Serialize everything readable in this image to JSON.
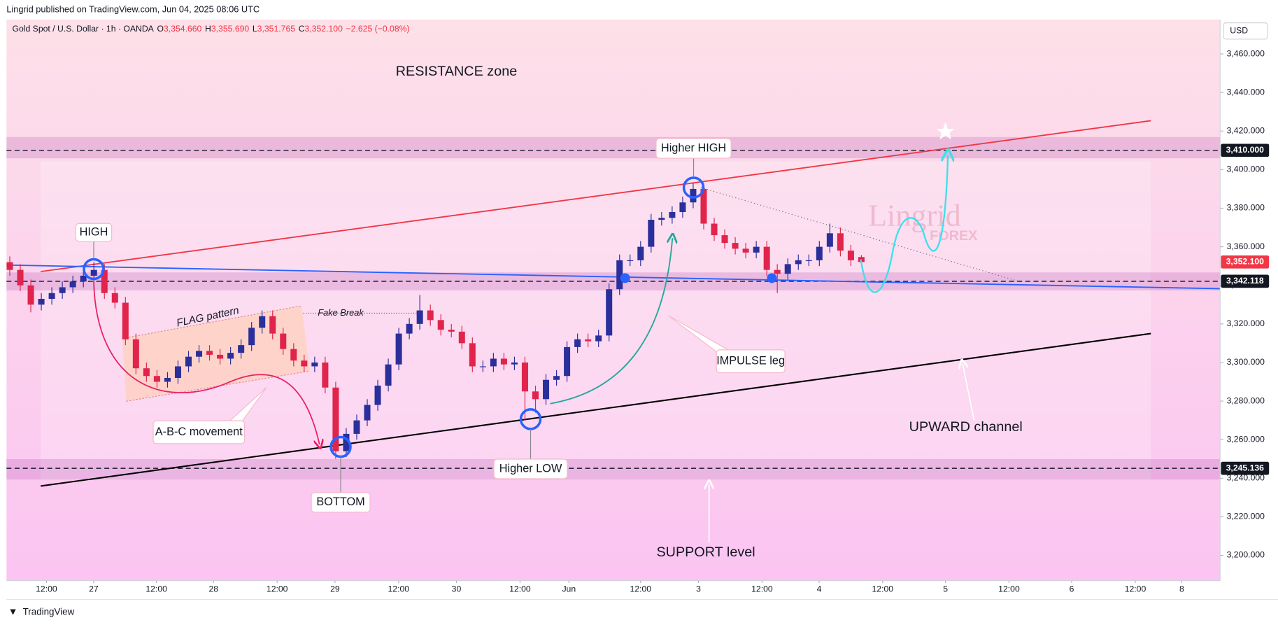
{
  "header": {
    "published": "Lingrid published on TradingView.com, Jun 04, 2025 08:06 UTC"
  },
  "symbol": {
    "title": "Gold Spot / U.S. Dollar · 1h · OANDA",
    "ohlc_labels": [
      "O",
      "H",
      "L",
      "C"
    ],
    "ohlc_values": [
      "3,354.660",
      "3,355.690",
      "3,351.765",
      "3,352.100"
    ],
    "change": "−2.625 (−0.08%)"
  },
  "axis": {
    "currency": "USD"
  },
  "annotations": {
    "resistance": "RESISTANCE zone",
    "higher_high": "Higher HIGH",
    "high": "HIGH",
    "flag": "FLAG pattern",
    "fake_break": "Fake Break",
    "abc": "A-B-C movement",
    "bottom": "BOTTOM",
    "higher_low": "Higher LOW",
    "impulse": "IMPULSE leg",
    "channel": "UPWARD channel",
    "support": "SUPPORT level"
  },
  "watermark": {
    "name": "Lingrid",
    "sub": "FOREX"
  },
  "footer": {
    "brand": "TradingView"
  },
  "chart_data": {
    "type": "candlestick",
    "up_color": "#2b2f9c",
    "down_color": "#e0244b",
    "open": [
      3352,
      3348,
      3340,
      3330,
      3333,
      3336,
      3339,
      3342,
      3345,
      3348,
      3336,
      3331,
      3312,
      3297,
      3293,
      3290,
      3292,
      3298,
      3303,
      3306,
      3304,
      3302,
      3305,
      3309,
      3318,
      3324,
      3315,
      3307,
      3301,
      3298,
      3300,
      3287,
      3254,
      3263,
      3270,
      3278,
      3288,
      3299,
      3315,
      3320,
      3327,
      3322,
      3317,
      3316,
      3310,
      3298,
      3298,
      3302,
      3299,
      3300,
      3285,
      3281,
      3291,
      3293,
      3308,
      3312,
      3311,
      3314,
      3338,
      3353,
      3353,
      3360,
      3374,
      3375,
      3378,
      3383,
      3390,
      3372,
      3366,
      3362,
      3359,
      3357,
      3360,
      3348,
      3346,
      3351,
      3353,
      3353,
      3360,
      3367,
      3358,
      3354.66
    ],
    "high": [
      3355,
      3351,
      3343,
      3336,
      3339,
      3342,
      3345,
      3348,
      3352,
      3351,
      3339,
      3334,
      3315,
      3300,
      3296,
      3295,
      3301,
      3306,
      3309,
      3309,
      3307,
      3308,
      3312,
      3321,
      3327,
      3327,
      3318,
      3310,
      3304,
      3303,
      3303,
      3290,
      3266,
      3273,
      3281,
      3291,
      3302,
      3318,
      3323,
      3335,
      3330,
      3325,
      3320,
      3319,
      3313,
      3301,
      3305,
      3305,
      3303,
      3303,
      3288,
      3294,
      3296,
      3311,
      3315,
      3315,
      3317,
      3341,
      3356,
      3356,
      3363,
      3377,
      3378,
      3381,
      3386,
      3393,
      3393,
      3375,
      3369,
      3365,
      3362,
      3363,
      3363,
      3351,
      3354,
      3356,
      3356,
      3363,
      3372,
      3370,
      3361,
      3355.69
    ],
    "low": [
      3345,
      3337,
      3326,
      3327,
      3330,
      3333,
      3336,
      3339,
      3342,
      3333,
      3328,
      3309,
      3294,
      3290,
      3287,
      3287,
      3289,
      3295,
      3300,
      3301,
      3299,
      3299,
      3302,
      3306,
      3315,
      3312,
      3304,
      3298,
      3295,
      3295,
      3284,
      3250,
      3251,
      3260,
      3267,
      3275,
      3285,
      3296,
      3312,
      3317,
      3319,
      3314,
      3313,
      3307,
      3295,
      3295,
      3295,
      3296,
      3296,
      3270,
      3274,
      3278,
      3288,
      3290,
      3305,
      3308,
      3308,
      3311,
      3335,
      3350,
      3350,
      3357,
      3371,
      3372,
      3375,
      3380,
      3369,
      3363,
      3359,
      3356,
      3354,
      3354,
      3345,
      3336,
      3343,
      3348,
      3350,
      3350,
      3357,
      3355,
      3350,
      3351.765
    ],
    "close": [
      3348,
      3340,
      3330,
      3333,
      3336,
      3339,
      3342,
      3345,
      3348,
      3336,
      3331,
      3312,
      3297,
      3293,
      3290,
      3292,
      3298,
      3303,
      3306,
      3304,
      3302,
      3305,
      3309,
      3318,
      3324,
      3315,
      3307,
      3301,
      3298,
      3300,
      3287,
      3254,
      3263,
      3270,
      3278,
      3288,
      3299,
      3315,
      3320,
      3327,
      3322,
      3317,
      3316,
      3310,
      3298,
      3298,
      3302,
      3299,
      3300,
      3285,
      3281,
      3291,
      3293,
      3308,
      3312,
      3311,
      3314,
      3338,
      3353,
      3353,
      3360,
      3374,
      3375,
      3378,
      3383,
      3390,
      3372,
      3366,
      3362,
      3359,
      3357,
      3360,
      3348,
      3346,
      3351,
      3353,
      3353,
      3360,
      3367,
      3358,
      3353,
      3352.1
    ],
    "ylim": [
      3186.9,
      3477.8
    ],
    "yticks": [
      {
        "value": 3200,
        "label": "3,200.000"
      },
      {
        "value": 3220,
        "label": "3,220.000"
      },
      {
        "value": 3240,
        "label": "3,240.000"
      },
      {
        "value": 3260,
        "label": "3,260.000"
      },
      {
        "value": 3280,
        "label": "3,280.000"
      },
      {
        "value": 3300,
        "label": "3,300.000"
      },
      {
        "value": 3320,
        "label": "3,320.000"
      },
      {
        "value": 3340,
        "label": "3,340.000"
      },
      {
        "value": 3360,
        "label": "3,360.000"
      },
      {
        "value": 3380,
        "label": "3,380.000"
      },
      {
        "value": 3400,
        "label": "3,400.000"
      },
      {
        "value": 3420,
        "label": "3,420.000"
      },
      {
        "value": 3440,
        "label": "3,440.000"
      },
      {
        "value": 3460,
        "label": "3,460.000"
      }
    ],
    "xlim": [
      -0.31,
      115.12
    ],
    "xticks": [
      {
        "value": 3.49,
        "label": "12:00"
      },
      {
        "value": 7.98,
        "label": "27"
      },
      {
        "value": 13.95,
        "label": "12:00"
      },
      {
        "value": 19.38,
        "label": "28"
      },
      {
        "value": 25.43,
        "label": "12:00"
      },
      {
        "value": 30.93,
        "label": "29"
      },
      {
        "value": 36.98,
        "label": "12:00"
      },
      {
        "value": 42.48,
        "label": "30"
      },
      {
        "value": 48.53,
        "label": "12:00"
      },
      {
        "value": 53.18,
        "label": "Jun"
      },
      {
        "value": 60,
        "label": "12:00"
      },
      {
        "value": 65.5,
        "label": "3"
      },
      {
        "value": 71.55,
        "label": "12:00"
      },
      {
        "value": 76.98,
        "label": "4"
      },
      {
        "value": 83.02,
        "label": "12:00"
      },
      {
        "value": 89,
        "label": "5"
      },
      {
        "value": 95.04,
        "label": "12:00"
      },
      {
        "value": 101,
        "label": "6"
      },
      {
        "value": 107.05,
        "label": "12:00"
      },
      {
        "value": 111.47,
        "label": "8"
      }
    ],
    "zones": [
      {
        "from": 3405.9,
        "to": 3416.9
      },
      {
        "from": 3337.4,
        "to": 3346.7
      },
      {
        "from": 3239.3,
        "to": 3249.9
      }
    ],
    "levels": [
      {
        "value": 3410,
        "label": "3,410.000",
        "color": "#131722",
        "dashed": true
      },
      {
        "value": 3352.1,
        "label": "3,352.100",
        "color": "#f23645",
        "dashed": false
      },
      {
        "value": 3342.118,
        "label": "3,342.118",
        "color": "#131722",
        "dashed": true
      },
      {
        "value": 3245.136,
        "label": "3,245.136",
        "color": "#131722",
        "dashed": true
      }
    ]
  }
}
